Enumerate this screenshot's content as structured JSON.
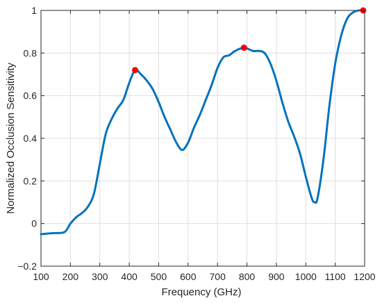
{
  "chart_data": {
    "type": "line",
    "title": "",
    "xlabel": "Frequency (GHz)",
    "ylabel": "Normalized Occlusion Sensitivity",
    "xlim": [
      100,
      1200
    ],
    "ylim": [
      -0.2,
      1
    ],
    "xticks": [
      100,
      200,
      300,
      400,
      500,
      600,
      700,
      800,
      900,
      1000,
      1100,
      1200
    ],
    "yticks": [
      -0.2,
      0,
      0.2,
      0.4,
      0.6,
      0.8,
      1
    ],
    "ytick_labels": [
      "−0.2",
      "0",
      "0.2",
      "0.4",
      "0.6",
      "0.8",
      "1"
    ],
    "grid": true,
    "line_color": "#0072BD",
    "marker_color": "#FF0000",
    "series": [
      {
        "x": [
          100,
          140,
          180,
          200,
          220,
          240,
          260,
          280,
          300,
          320,
          340,
          360,
          380,
          400,
          420,
          440,
          460,
          480,
          500,
          520,
          540,
          560,
          580,
          600,
          620,
          640,
          660,
          680,
          700,
          720,
          740,
          760,
          790,
          820,
          840,
          860,
          880,
          900,
          920,
          940,
          960,
          980,
          1000,
          1020,
          1030,
          1040,
          1060,
          1080,
          1100,
          1120,
          1140,
          1160,
          1180,
          1200
        ],
        "y": [
          -0.05,
          -0.045,
          -0.04,
          0.0,
          0.03,
          0.05,
          0.08,
          0.14,
          0.28,
          0.42,
          0.49,
          0.54,
          0.58,
          0.66,
          0.72,
          0.7,
          0.67,
          0.63,
          0.57,
          0.5,
          0.44,
          0.38,
          0.345,
          0.38,
          0.45,
          0.51,
          0.58,
          0.65,
          0.73,
          0.78,
          0.79,
          0.81,
          0.825,
          0.81,
          0.81,
          0.8,
          0.75,
          0.67,
          0.57,
          0.48,
          0.41,
          0.33,
          0.22,
          0.12,
          0.1,
          0.12,
          0.3,
          0.55,
          0.75,
          0.88,
          0.96,
          0.99,
          1.0,
          1.0
        ]
      }
    ],
    "markers": [
      {
        "x": 420,
        "y": 0.72
      },
      {
        "x": 790,
        "y": 0.825
      },
      {
        "x": 1195,
        "y": 1.0
      }
    ]
  }
}
